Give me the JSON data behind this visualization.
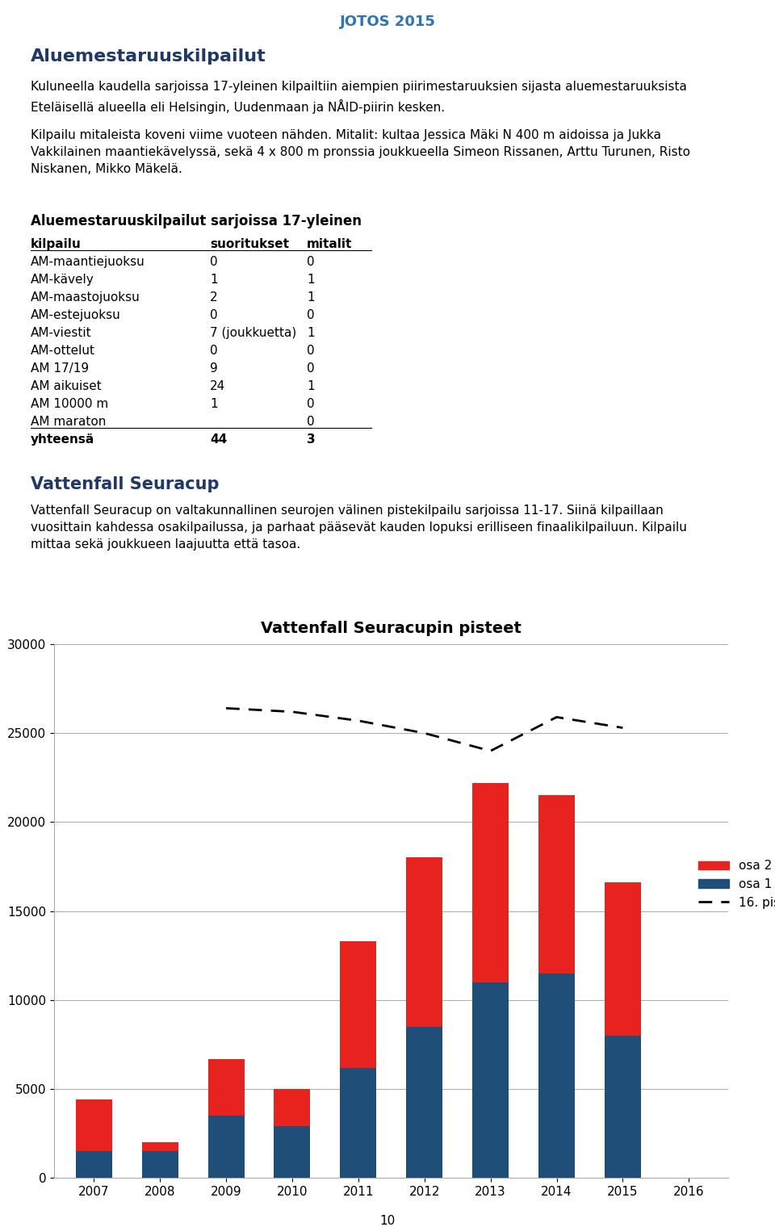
{
  "page_title": "JOTOS 2015",
  "section1_title": "Aluemestaruuskilpailut",
  "section1_para1": "Kuluneella kaudella sarjoissa 17-yleinen kilpailtiin aiempien piirimestaruuksien sijasta aluemestaruuksista\nEteläisellä alueella eli Helsingin, Uudenmaan ja NÅID-piirin kesken.",
  "section1_para2": "Kilpailu mitaleista koveni viime vuoteen nähden. Mitalit: kultaa Jessica Mäki N 400 m aidoissa ja Jukka\nVakkilainen maantiekävelyssä, sekä 4 x 800 m pronssia joukkueella Simeon Rissanen, Arttu Turunen, Risto\nNiskanen, Mikko Mäkelä.",
  "table_title": "Aluemestaruuskilpailut sarjoissa 17-yleinen",
  "table_headers": [
    "kilpailu",
    "suoritukset",
    "mitalit"
  ],
  "table_rows": [
    [
      "AM-maantiejuoksu",
      "0",
      "0"
    ],
    [
      "AM-kävely",
      "1",
      "1"
    ],
    [
      "AM-maastojuoksu",
      "2",
      "1"
    ],
    [
      "AM-estejuoksu",
      "0",
      "0"
    ],
    [
      "AM-viestit",
      "7 (joukkuetta)",
      "1"
    ],
    [
      "AM-ottelut",
      "0",
      "0"
    ],
    [
      "AM 17/19",
      "9",
      "0"
    ],
    [
      "AM aikuiset",
      "24",
      "1"
    ],
    [
      "AM 10000 m",
      "1",
      "0"
    ],
    [
      "AM maraton",
      "",
      "0"
    ],
    [
      "yhteensä",
      "44",
      "3"
    ]
  ],
  "section2_title": "Vattenfall Seuracup",
  "section2_para": "Vattenfall Seuracup on valtakunnallinen seurojen välinen pistekilpailu sarjoissa 11-17. Siinä kilpaillaan\nvuosittain kahdessa osakilpailussa, ja parhaat pääsevät kauden lopuksi erilliseen finaalikilpailuun. Kilpailu\nmittaa sekä joukkueen laajuutta että tasoa.",
  "chart_title": "Vattenfall Seuracupin pisteet",
  "years": [
    2007,
    2008,
    2009,
    2010,
    2011,
    2012,
    2013,
    2014,
    2015,
    2016
  ],
  "osa1": [
    1500,
    1500,
    3500,
    2900,
    6200,
    8500,
    11000,
    11500,
    8000,
    0
  ],
  "osa2_total": [
    4400,
    2000,
    6700,
    5000,
    13300,
    18000,
    22200,
    21500,
    16600,
    0
  ],
  "dashed_line_years": [
    2009,
    2010,
    2011,
    2012,
    2013,
    2014,
    2015
  ],
  "dashed_line_values": [
    26400,
    26200,
    25700,
    25000,
    24000,
    25900,
    25300
  ],
  "color_osa2": "#e8221e",
  "color_osa1": "#1f4e79",
  "color_dashed": "#111111",
  "chart_ylim": [
    0,
    30000
  ],
  "chart_yticks": [
    0,
    5000,
    10000,
    15000,
    20000,
    25000,
    30000
  ],
  "page_number": "10",
  "title_color": "#2e74b5",
  "heading_color": "#1f3864",
  "header_bg": "#ffffff"
}
